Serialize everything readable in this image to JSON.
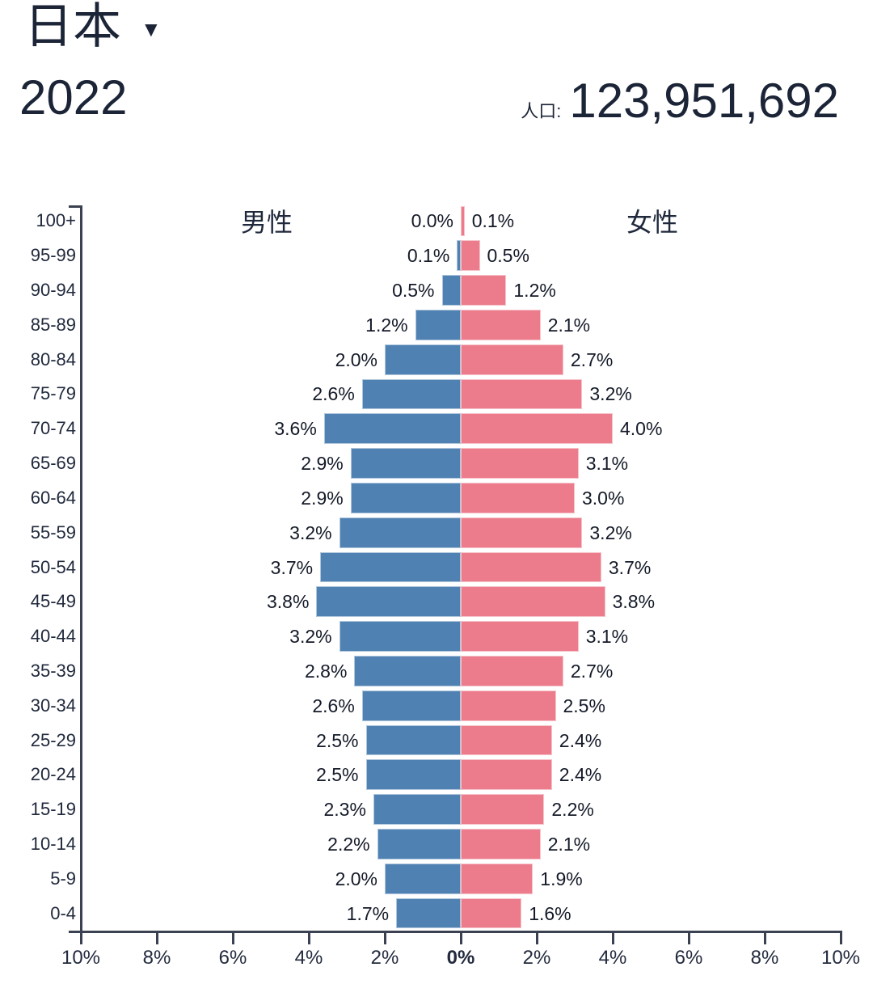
{
  "header": {
    "country": "日本",
    "dropdown_icon": "▼",
    "year": "2022",
    "population_label": "人口:",
    "population_value": "123,951,692"
  },
  "chart_data": {
    "type": "bar",
    "subtype": "population-pyramid",
    "title": "日本 2022 population pyramid",
    "male_label": "男性",
    "female_label": "女性",
    "age_groups": [
      "100+",
      "95-99",
      "90-94",
      "85-89",
      "80-84",
      "75-79",
      "70-74",
      "65-69",
      "60-64",
      "55-59",
      "50-54",
      "45-49",
      "40-44",
      "35-39",
      "30-34",
      "25-29",
      "20-24",
      "15-19",
      "10-14",
      "5-9",
      "0-4"
    ],
    "series": [
      {
        "name": "男性",
        "side": "left",
        "color": "#4f81b2",
        "values_pct": [
          0.0,
          0.1,
          0.5,
          1.2,
          2.0,
          2.6,
          3.6,
          2.9,
          2.9,
          3.2,
          3.7,
          3.8,
          3.2,
          2.8,
          2.6,
          2.5,
          2.5,
          2.3,
          2.2,
          2.0,
          1.7
        ]
      },
      {
        "name": "女性",
        "side": "right",
        "color": "#ec7b8b",
        "values_pct": [
          0.1,
          0.5,
          1.2,
          2.1,
          2.7,
          3.2,
          4.0,
          3.1,
          3.0,
          3.2,
          3.7,
          3.8,
          3.1,
          2.7,
          2.5,
          2.4,
          2.4,
          2.2,
          2.1,
          1.9,
          1.6
        ]
      }
    ],
    "value_label_suffix": "%",
    "x_axis": {
      "ticks": [
        "10%",
        "8%",
        "6%",
        "4%",
        "2%",
        "0%",
        "2%",
        "4%",
        "6%",
        "8%",
        "10%"
      ],
      "max_pct": 10,
      "tick_step_pct": 2,
      "center_label": "0%"
    },
    "grid": false,
    "legend_position": "inside-top",
    "colors": {
      "male": "#4f81b2",
      "female": "#ec7b8b",
      "axis": "#3a4150",
      "text": "#1c2537"
    }
  }
}
